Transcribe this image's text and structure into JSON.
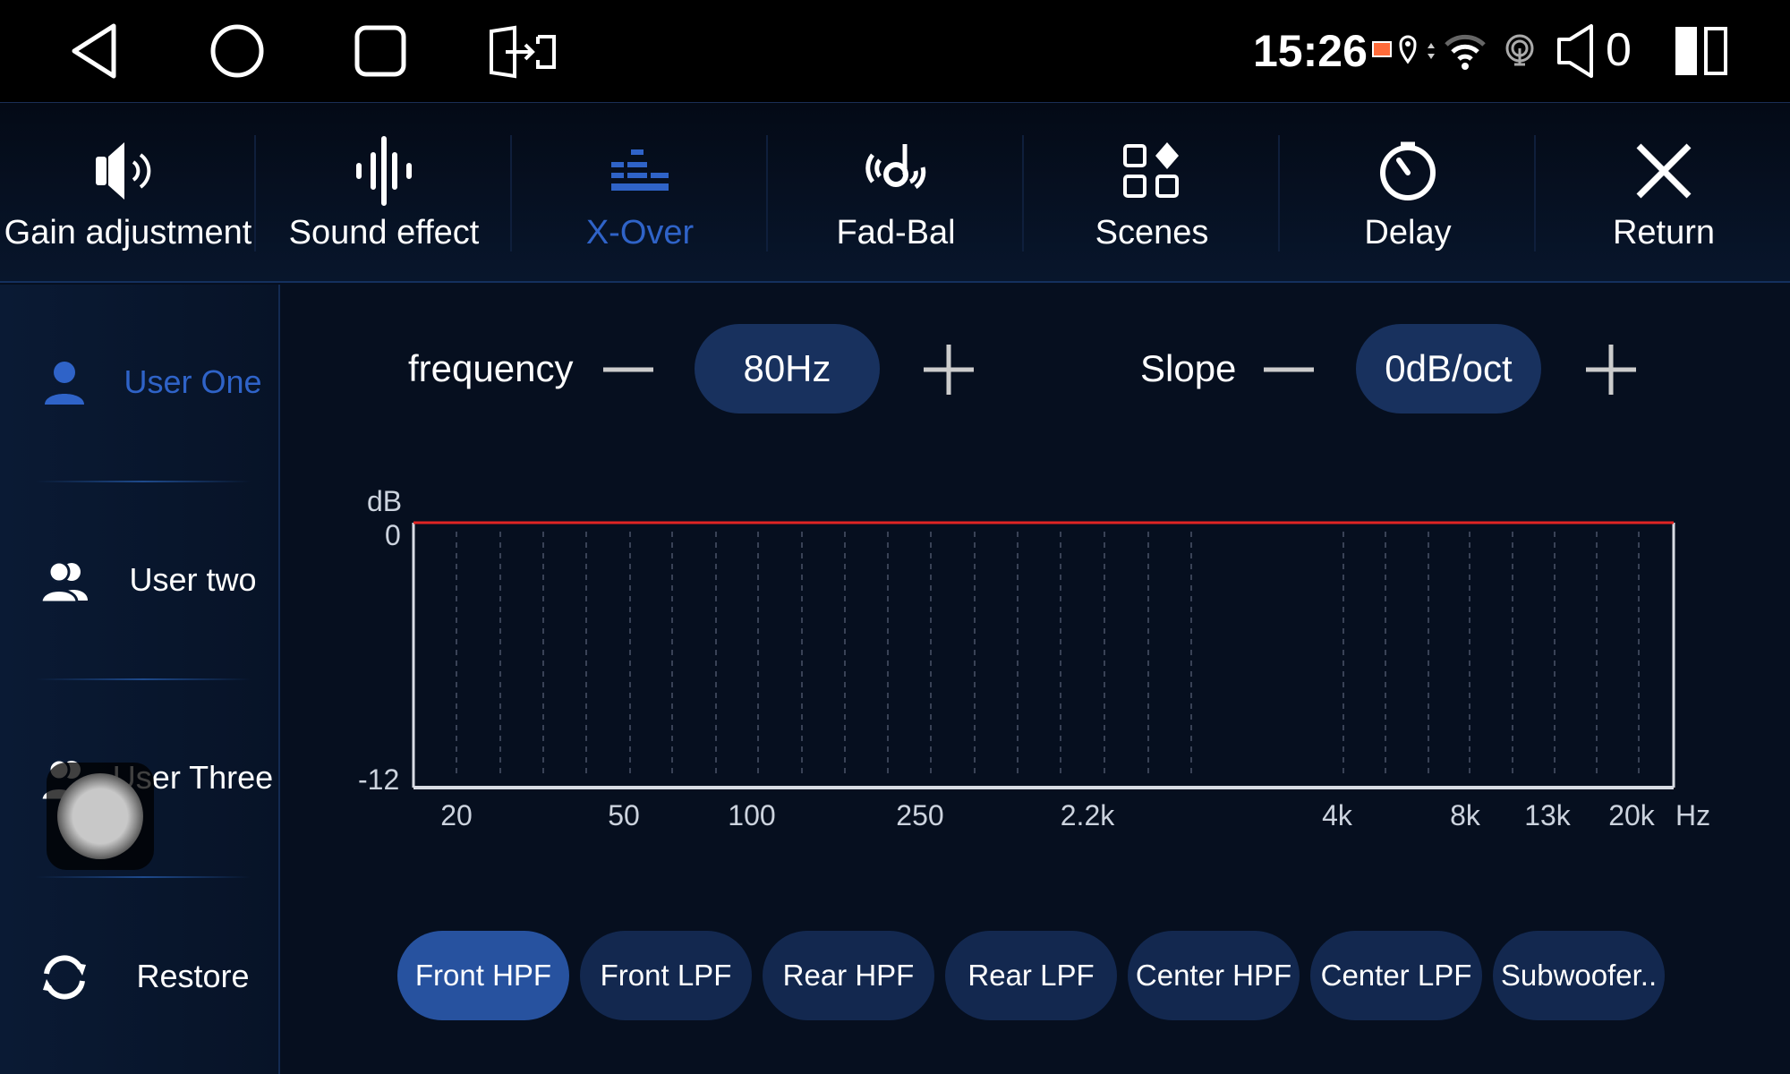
{
  "status_bar": {
    "time": "15:26",
    "volume": "0",
    "icons": [
      "back-icon",
      "home-icon",
      "recents-icon",
      "screen-split-icon",
      "cast-icon",
      "location-icon",
      "data-arrows-icon",
      "wifi-icon",
      "hotspot-icon",
      "speaker-icon",
      "split-screen-icon"
    ]
  },
  "tabs": [
    {
      "label": "Gain adjustment",
      "icon": "speaker-icon",
      "active": false
    },
    {
      "label": "Sound effect",
      "icon": "waveform-icon",
      "active": false
    },
    {
      "label": "X-Over",
      "icon": "equalizer-bars-icon",
      "active": true
    },
    {
      "label": "Fad-Bal",
      "icon": "fader-balance-icon",
      "active": false
    },
    {
      "label": "Scenes",
      "icon": "scenes-grid-icon",
      "active": false
    },
    {
      "label": "Delay",
      "icon": "timer-icon",
      "active": false
    },
    {
      "label": "Return",
      "icon": "close-icon",
      "active": false
    }
  ],
  "sidebar": {
    "items": [
      {
        "label": "User One",
        "icon": "user-icon",
        "active": true
      },
      {
        "label": "User two",
        "icon": "users-icon",
        "active": false
      },
      {
        "label": "User Three",
        "icon": "users-icon",
        "active": false
      },
      {
        "label": "Restore",
        "icon": "restore-icon",
        "active": false
      }
    ]
  },
  "controls": {
    "frequency_label": "frequency",
    "frequency_value": "80Hz",
    "slope_label": "Slope",
    "slope_value": "0dB/oct"
  },
  "chart_data": {
    "type": "line",
    "ylabel": "dB",
    "xlabel": "Hz",
    "ylim": [
      -12,
      0
    ],
    "yticks": [
      "0",
      "-12"
    ],
    "xticks": [
      "20",
      "50",
      "100",
      "250",
      "2.2k",
      "4k",
      "8k",
      "13k",
      "20k"
    ],
    "series": [
      {
        "values": [
          0,
          0,
          0,
          0,
          0,
          0,
          0,
          0,
          0
        ],
        "color": "#e02424"
      }
    ],
    "grid": "vertical dashed"
  },
  "channels": [
    {
      "label": "Front HPF",
      "active": true
    },
    {
      "label": "Front LPF",
      "active": false
    },
    {
      "label": "Rear HPF",
      "active": false
    },
    {
      "label": "Rear LPF",
      "active": false
    },
    {
      "label": "Center HPF",
      "active": false
    },
    {
      "label": "Center LPF",
      "active": false
    },
    {
      "label": "Subwoofer..",
      "active": false
    }
  ],
  "colors": {
    "accent": "#2f63c8",
    "background": "#060f1f",
    "pill": "#18315e",
    "curve": "#e02424"
  }
}
